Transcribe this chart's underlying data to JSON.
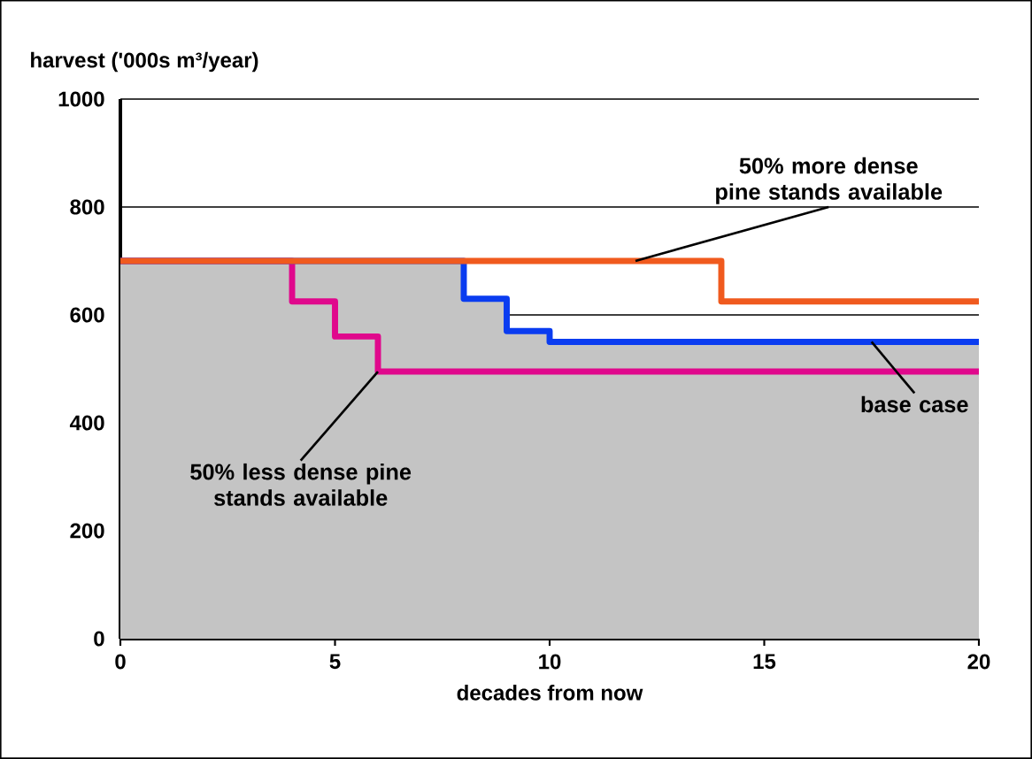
{
  "chart_data": {
    "type": "step",
    "ylabel": "harvest ('000s m³/year)",
    "xlabel": "decades from now",
    "xlim": [
      0,
      20
    ],
    "xticks": [
      0,
      5,
      10,
      15,
      20
    ],
    "ylim": [
      0,
      1000
    ],
    "yticks": [
      0,
      200,
      400,
      600,
      800,
      1000
    ],
    "grid": "y",
    "series": [
      {
        "type": "area",
        "color": "#c4c4c4",
        "x": [
          0,
          8,
          9,
          10,
          20
        ],
        "values": [
          700,
          630,
          570,
          550,
          550
        ]
      },
      {
        "color": "#e0088c",
        "x": [
          0,
          4,
          5,
          6,
          20
        ],
        "values": [
          700,
          625,
          560,
          495,
          495
        ]
      },
      {
        "color": "#0a3cf0",
        "x": [
          0,
          8,
          9,
          10,
          20
        ],
        "values": [
          700,
          630,
          570,
          550,
          550
        ]
      },
      {
        "color": "#f05a1e",
        "x": [
          0,
          14,
          20
        ],
        "values": [
          700,
          625,
          625
        ]
      }
    ],
    "annotations": [
      {
        "text": "50% more dense pine stands available",
        "x": 12,
        "y": 700
      },
      {
        "text": "50% less dense pine stands available",
        "x": 6,
        "y": 495
      },
      {
        "text": "base case",
        "x": 17.5,
        "y": 550
      }
    ]
  }
}
